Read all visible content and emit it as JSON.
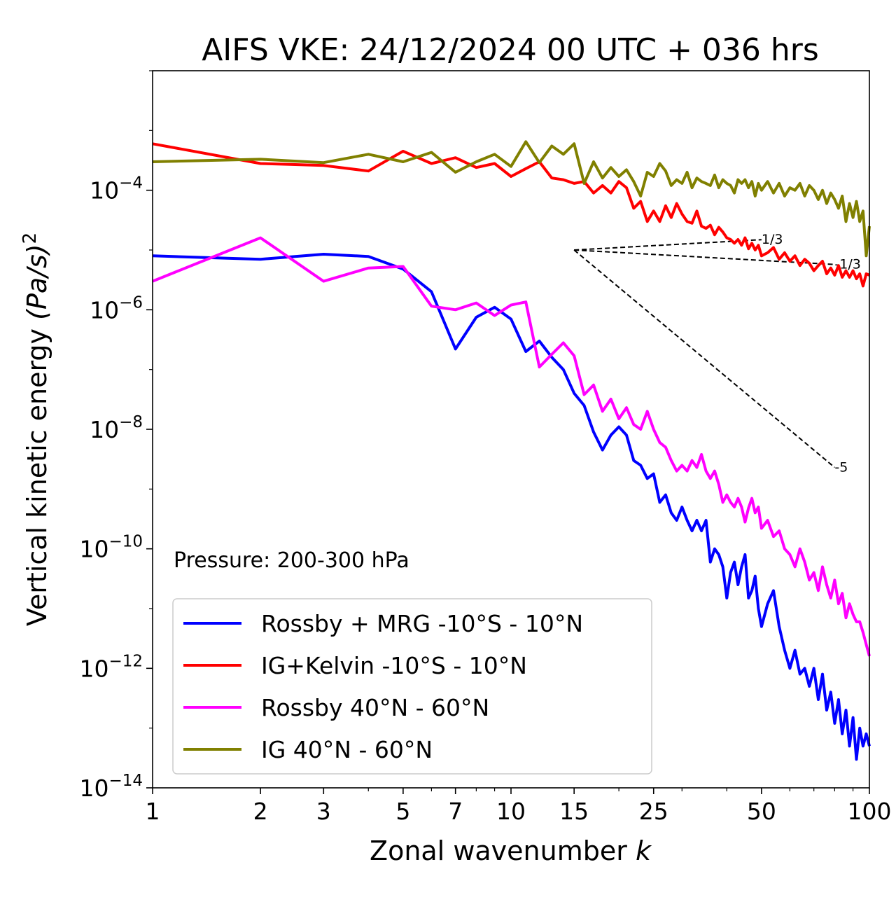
{
  "chart_data": {
    "type": "line",
    "title": "AIFS VKE: 24/12/2024 00 UTC + 036 hrs",
    "xlabel": "Zonal wavenumber",
    "xlabel_var": "k",
    "ylabel": "Vertical kinetic energy",
    "ylabel_expr": "(Pa/s)",
    "ylabel_exp": "2",
    "xscale": "log",
    "yscale": "log",
    "xlim": [
      1,
      100
    ],
    "ylim": [
      1e-14,
      0.01
    ],
    "xticks": [
      {
        "v": 1,
        "label": "1"
      },
      {
        "v": 2,
        "label": "2"
      },
      {
        "v": 3,
        "label": "3"
      },
      {
        "v": 5,
        "label": "5"
      },
      {
        "v": 7,
        "label": "7"
      },
      {
        "v": 10,
        "label": "10"
      },
      {
        "v": 15,
        "label": "15"
      },
      {
        "v": 25,
        "label": "25"
      },
      {
        "v": 50,
        "label": "50"
      },
      {
        "v": 100,
        "label": "100"
      }
    ],
    "yticks": [
      {
        "exp": -4,
        "label": "10",
        "sup": "−4"
      },
      {
        "exp": -6,
        "label": "10",
        "sup": "−6"
      },
      {
        "exp": -8,
        "label": "10",
        "sup": "−8"
      },
      {
        "exp": -10,
        "label": "10",
        "sup": "−10"
      },
      {
        "exp": -12,
        "label": "10",
        "sup": "−12"
      },
      {
        "exp": -14,
        "label": "10",
        "sup": "−14"
      }
    ],
    "annotation": "Pressure: 200-300 hPa",
    "legend_position": "lower-left",
    "series": [
      {
        "name": "Rossby + MRG -10°S - 10°N",
        "color": "#0000ff",
        "x": [
          1,
          2,
          3,
          4,
          5,
          6,
          7,
          8,
          9,
          10,
          11,
          12,
          13,
          14,
          15,
          16,
          17,
          18,
          19,
          20,
          21,
          22,
          23,
          24,
          25,
          26,
          27,
          28,
          29,
          30,
          31,
          32,
          33,
          34,
          35,
          36,
          37,
          38,
          39,
          40,
          41,
          42,
          43,
          44,
          45,
          46,
          47,
          48,
          49,
          50,
          52,
          54,
          56,
          58,
          60,
          62,
          64,
          66,
          68,
          70,
          72,
          74,
          76,
          78,
          80,
          82,
          84,
          86,
          88,
          90,
          92,
          94,
          96,
          98,
          100
        ],
        "y": [
          8e-06,
          7e-06,
          8.5e-06,
          7.8e-06,
          4.8e-06,
          2e-06,
          2.2e-07,
          7.5e-07,
          1.1e-06,
          7e-07,
          2e-07,
          3e-07,
          1.6e-07,
          1e-07,
          4e-08,
          2.5e-08,
          9e-09,
          4.5e-09,
          8e-09,
          1.1e-08,
          8e-09,
          3e-09,
          2.5e-09,
          1.5e-09,
          1.8e-09,
          6e-10,
          8e-10,
          4e-10,
          3e-10,
          5e-10,
          3e-10,
          2e-10,
          3e-10,
          2e-10,
          3e-10,
          6e-11,
          1e-10,
          8e-11,
          5e-11,
          1.5e-11,
          4e-11,
          6e-11,
          2.5e-11,
          5e-11,
          8e-11,
          1.5e-11,
          2e-11,
          3.5e-11,
          1e-11,
          5e-12,
          1.2e-11,
          2e-11,
          5e-12,
          2e-12,
          1e-12,
          2e-12,
          8e-13,
          1e-12,
          5e-13,
          1e-12,
          3e-13,
          8e-13,
          2e-13,
          4e-13,
          1.2e-13,
          3e-13,
          8e-14,
          2e-13,
          5e-14,
          1.5e-13,
          3e-14,
          1e-13,
          5e-14,
          8e-14,
          5e-14
        ]
      },
      {
        "name": "IG+Kelvin -10°S - 10°N",
        "color": "#ff0000",
        "x": [
          1,
          2,
          3,
          4,
          5,
          6,
          7,
          8,
          9,
          10,
          11,
          12,
          13,
          14,
          15,
          16,
          17,
          18,
          19,
          20,
          21,
          22,
          23,
          24,
          25,
          26,
          27,
          28,
          29,
          30,
          31,
          32,
          33,
          34,
          35,
          36,
          37,
          38,
          39,
          40,
          41,
          42,
          43,
          44,
          45,
          46,
          47,
          48,
          49,
          50,
          52,
          54,
          56,
          58,
          60,
          62,
          64,
          66,
          68,
          70,
          72,
          74,
          76,
          78,
          80,
          82,
          84,
          86,
          88,
          90,
          92,
          94,
          96,
          98,
          100
        ],
        "y": [
          0.0006,
          0.00028,
          0.00026,
          0.00021,
          0.00045,
          0.00028,
          0.00035,
          0.00024,
          0.00028,
          0.00017,
          0.00023,
          0.0003,
          0.00016,
          0.00015,
          0.00013,
          0.00014,
          9e-05,
          0.00012,
          9e-05,
          0.00014,
          0.00011,
          5e-05,
          6.5e-05,
          3e-05,
          4.5e-05,
          3e-05,
          5.5e-05,
          3.5e-05,
          6e-05,
          4e-05,
          3e-05,
          2.8e-05,
          4.5e-05,
          2.5e-05,
          2.3e-05,
          2.6e-05,
          1.8e-05,
          2.4e-05,
          2e-05,
          1.6e-05,
          1.5e-05,
          1.3e-05,
          1.5e-05,
          1.2e-05,
          1.6e-05,
          1.05e-05,
          1.3e-05,
          1e-05,
          1.2e-05,
          8e-06,
          9e-06,
          1.1e-05,
          7e-06,
          9e-06,
          6.5e-06,
          8e-06,
          5.5e-06,
          7e-06,
          6e-06,
          4.5e-06,
          5.5e-06,
          6.5e-06,
          4e-06,
          5e-06,
          3.8e-06,
          5.5e-06,
          3.5e-06,
          4.5e-06,
          3.5e-06,
          4.5e-06,
          3.3e-06,
          4e-06,
          2.5e-06,
          4e-06,
          3.8e-06
        ]
      },
      {
        "name": "Rossby 40°N - 60°N",
        "color": "#ff00ff",
        "x": [
          1,
          2,
          3,
          4,
          5,
          6,
          7,
          8,
          9,
          10,
          11,
          12,
          13,
          14,
          15,
          16,
          17,
          18,
          19,
          20,
          21,
          22,
          23,
          24,
          25,
          26,
          27,
          28,
          29,
          30,
          31,
          32,
          33,
          34,
          35,
          36,
          37,
          38,
          39,
          40,
          41,
          42,
          43,
          44,
          45,
          46,
          47,
          48,
          49,
          50,
          52,
          54,
          56,
          58,
          60,
          62,
          64,
          66,
          68,
          70,
          72,
          74,
          76,
          78,
          80,
          82,
          84,
          86,
          88,
          90,
          92,
          94,
          96,
          98,
          100
        ],
        "y": [
          3e-06,
          1.6e-05,
          3e-06,
          5e-06,
          5.3e-06,
          1.15e-06,
          1e-06,
          1.3e-06,
          8e-07,
          1.2e-06,
          1.35e-06,
          1.1e-07,
          1.8e-07,
          2.8e-07,
          1.7e-07,
          3.8e-08,
          5.5e-08,
          2e-08,
          3.2e-08,
          1.5e-08,
          2.3e-08,
          1.2e-08,
          1e-08,
          2e-08,
          1e-08,
          6e-09,
          5e-09,
          3e-09,
          2e-09,
          2.5e-09,
          2e-09,
          3e-09,
          2.3e-09,
          3.8e-09,
          2e-09,
          1.5e-09,
          2e-09,
          1.2e-09,
          6e-10,
          8e-10,
          6e-10,
          5e-10,
          7e-10,
          5e-10,
          2.8e-10,
          4.8e-10,
          7e-10,
          4e-10,
          5e-10,
          2.2e-10,
          3e-10,
          1.6e-10,
          2e-10,
          1e-10,
          8e-11,
          5e-11,
          1e-10,
          6e-11,
          3e-11,
          4e-11,
          2e-11,
          5e-11,
          2.5e-11,
          1.5e-11,
          3e-11,
          1.2e-11,
          1.8e-11,
          7e-12,
          1.2e-11,
          8e-12,
          6e-12,
          6e-12,
          4e-12,
          2.5e-12,
          1.6e-12
        ]
      },
      {
        "name": "IG 40°N - 60°N",
        "color": "#808000",
        "x": [
          1,
          2,
          3,
          4,
          5,
          6,
          7,
          8,
          9,
          10,
          11,
          12,
          13,
          14,
          15,
          16,
          17,
          18,
          19,
          20,
          21,
          22,
          23,
          24,
          25,
          26,
          27,
          28,
          29,
          30,
          31,
          32,
          33,
          34,
          35,
          36,
          37,
          38,
          39,
          40,
          41,
          42,
          43,
          44,
          45,
          46,
          47,
          48,
          49,
          50,
          52,
          54,
          56,
          58,
          60,
          62,
          64,
          66,
          68,
          70,
          72,
          74,
          76,
          78,
          80,
          82,
          84,
          86,
          88,
          90,
          92,
          94,
          96,
          98,
          100
        ],
        "y": [
          0.0003,
          0.00033,
          0.00029,
          0.0004,
          0.0003,
          0.00043,
          0.0002,
          0.0003,
          0.0004,
          0.00025,
          0.00065,
          0.00029,
          0.00055,
          0.0004,
          0.0006,
          0.00013,
          0.0003,
          0.00016,
          0.00024,
          0.00017,
          0.00022,
          0.00014,
          8e-05,
          0.0002,
          0.00017,
          0.00028,
          0.00021,
          0.00012,
          0.00015,
          0.00013,
          0.0002,
          0.00011,
          0.00016,
          0.00014,
          0.00013,
          0.00012,
          0.00018,
          0.00011,
          0.00015,
          0.00013,
          0.00012,
          9e-05,
          0.00015,
          0.00013,
          0.00015,
          0.00011,
          0.00014,
          8e-05,
          0.00013,
          0.0001,
          0.00014,
          9e-05,
          0.00013,
          8e-05,
          0.00011,
          0.0001,
          0.00013,
          8e-05,
          0.00012,
          0.0001,
          7e-05,
          0.0001,
          6e-05,
          9e-05,
          7e-05,
          5e-05,
          8e-05,
          3e-05,
          6e-05,
          3.5e-05,
          6.5e-05,
          3e-05,
          4.5e-05,
          8e-06,
          2.5e-05
        ]
      }
    ],
    "reference_lines": [
      {
        "label": "1/3",
        "slope": 0.3333,
        "x": [
          15,
          50
        ],
        "y": [
          1e-05,
          1.49e-05
        ]
      },
      {
        "label": "-1/3",
        "slope": -0.3333,
        "x": [
          15,
          80
        ],
        "y": [
          1e-05,
          5.73e-06
        ]
      },
      {
        "label": "-5",
        "slope": -5,
        "x": [
          15,
          80
        ],
        "y": [
          1e-05,
          2.3e-09
        ]
      }
    ]
  }
}
